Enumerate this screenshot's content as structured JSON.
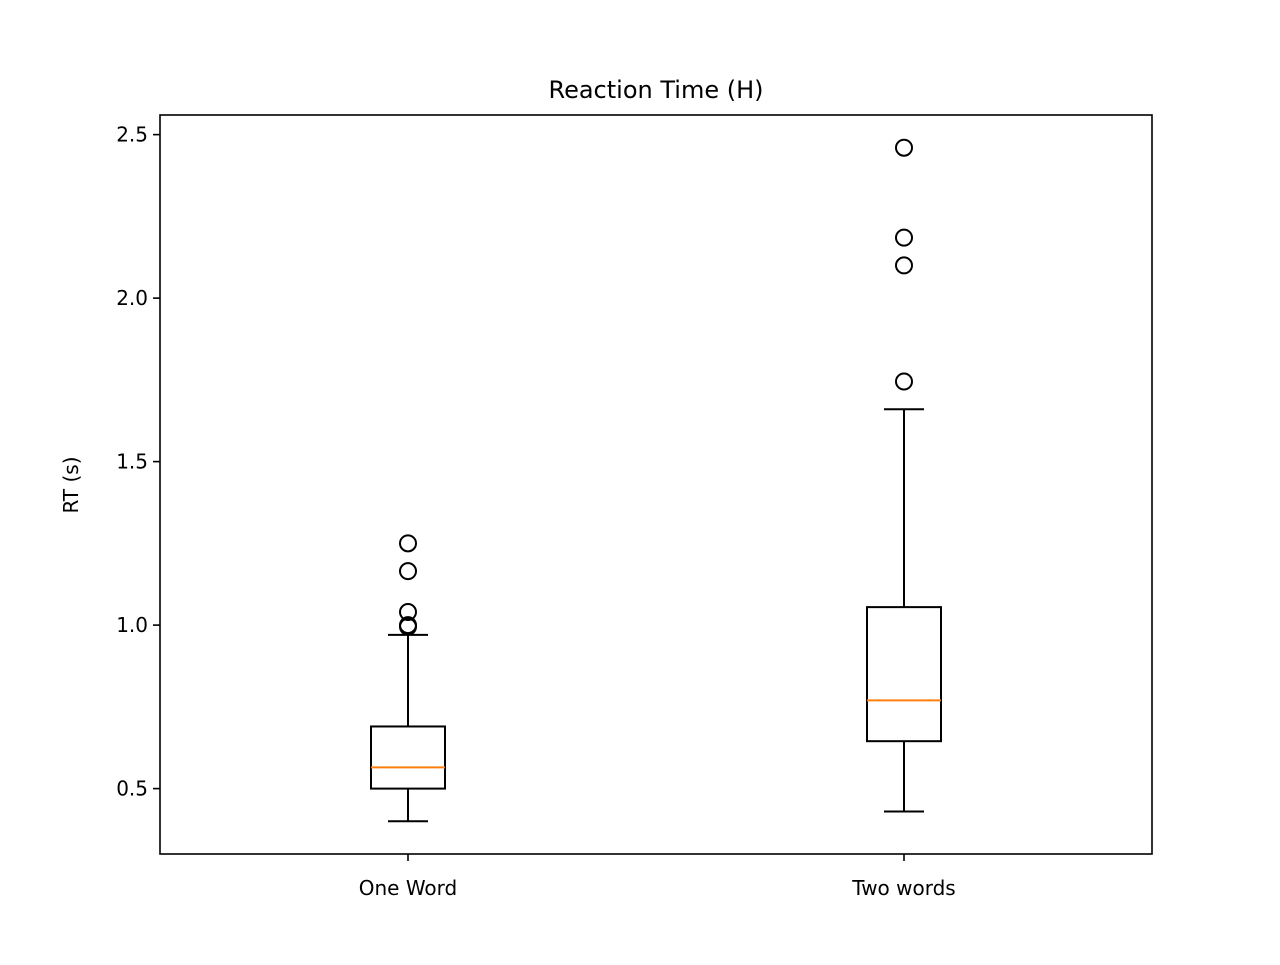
{
  "chart_data": {
    "type": "box",
    "title": "Reaction Time (H)",
    "xlabel": "",
    "ylabel": "RT (s)",
    "ylim": [
      0.3,
      2.56
    ],
    "yticks": [
      0.5,
      1.0,
      1.5,
      2.0,
      2.5
    ],
    "ytick_labels": [
      "0.5",
      "1.0",
      "1.5",
      "2.0",
      "2.5"
    ],
    "grid": false,
    "categories": [
      "One Word",
      "Two words"
    ],
    "boxes": [
      {
        "name": "One Word",
        "whisker_low": 0.4,
        "q1": 0.5,
        "median": 0.565,
        "q3": 0.69,
        "whisker_high": 0.97,
        "outliers": [
          0.995,
          1.0,
          1.04,
          1.165,
          1.25
        ]
      },
      {
        "name": "Two words",
        "whisker_low": 0.43,
        "q1": 0.645,
        "median": 0.77,
        "q3": 1.055,
        "whisker_high": 1.66,
        "outliers": [
          1.745,
          2.1,
          2.185,
          2.46
        ]
      }
    ],
    "colors": {
      "box": "#000000",
      "median": "#ff7f0e",
      "outlier": "#000000"
    }
  }
}
